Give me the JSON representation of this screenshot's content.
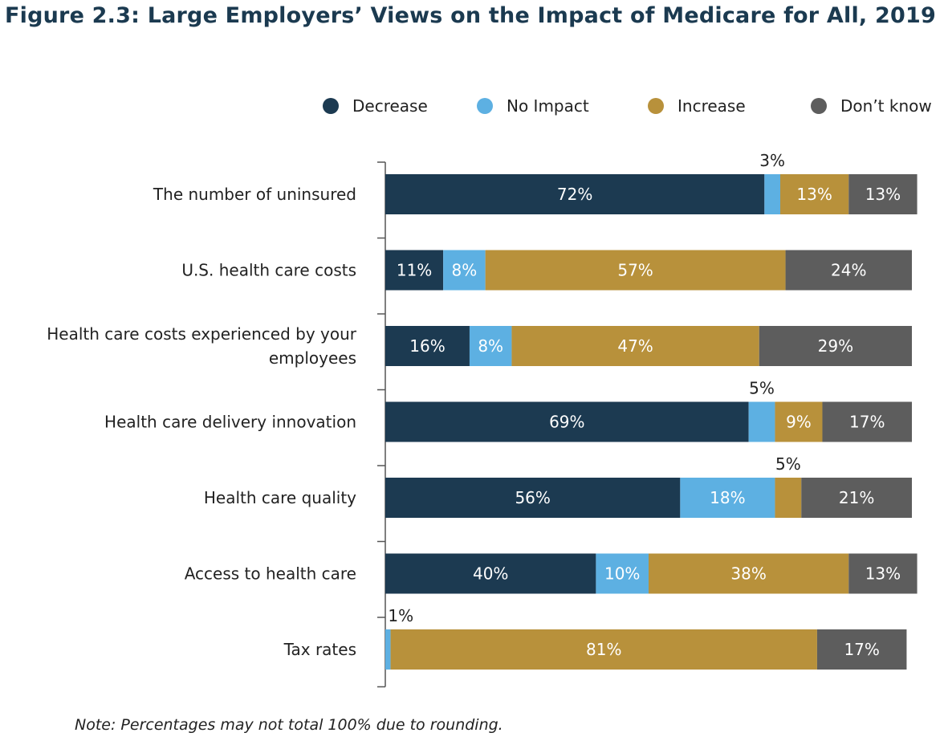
{
  "chart_data": {
    "type": "bar",
    "orientation": "horizontal",
    "stacked": true,
    "title": "Figure 2.3: Large Employers’ Views on the Impact of Medicare for All, 2019",
    "note": "Note: Percentages may not total 100% due to rounding.",
    "categories": [
      "The number of uninsured",
      "U.S. health care costs",
      "Health care costs experienced by your employees",
      "Health care delivery innovation",
      "Health care quality",
      "Access to health care",
      "Tax rates"
    ],
    "category_lines": [
      [
        "The number of uninsured"
      ],
      [
        "U.S. health care costs"
      ],
      [
        "Health care costs experienced by your",
        "employees"
      ],
      [
        "Health care delivery innovation"
      ],
      [
        "Health care quality"
      ],
      [
        "Access to health care"
      ],
      [
        "Tax rates"
      ]
    ],
    "series": [
      {
        "name": "Decrease",
        "color": "#1c3a51",
        "values": [
          72,
          11,
          16,
          69,
          56,
          40,
          0
        ]
      },
      {
        "name": "No Impact",
        "color": "#5db0e2",
        "values": [
          3,
          8,
          8,
          5,
          18,
          10,
          1
        ]
      },
      {
        "name": "Increase",
        "color": "#b8913b",
        "values": [
          13,
          57,
          47,
          9,
          5,
          38,
          81
        ]
      },
      {
        "name": "Don’t know",
        "color": "#5d5d5d",
        "values": [
          13,
          24,
          29,
          17,
          21,
          13,
          17
        ]
      }
    ],
    "outside_labels": [
      {
        "row": 0,
        "series": 1,
        "text": "3%"
      },
      {
        "row": 3,
        "series": 1,
        "text": "5%"
      },
      {
        "row": 4,
        "series": 2,
        "text": "5%"
      },
      {
        "row": 6,
        "series": 1,
        "text": "1%"
      }
    ],
    "xlim": [
      0,
      100
    ],
    "legend_position": "top-right",
    "grid": false
  }
}
